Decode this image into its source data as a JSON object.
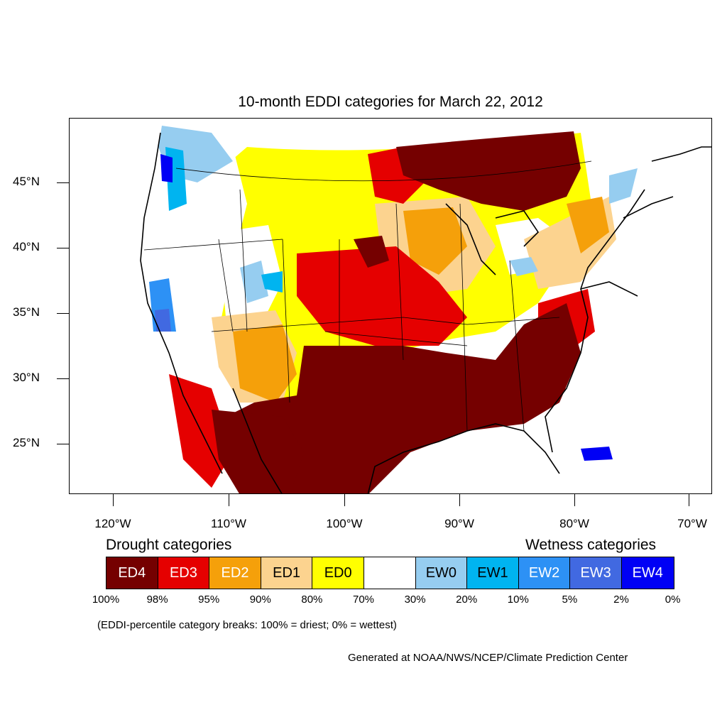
{
  "title": "10-month EDDI categories for March 22, 2012",
  "map": {
    "projection": "conic",
    "lat_labels": [
      "45°N",
      "40°N",
      "35°N",
      "30°N",
      "25°N"
    ],
    "lon_labels": [
      "120°W",
      "110°W",
      "100°W",
      "90°W",
      "80°W",
      "70°W"
    ],
    "regions": [
      {
        "name": "Northwest",
        "category": "ED0/neutral",
        "notes": "wetness patches along coast"
      },
      {
        "name": "Upper Midwest / Minnesota-Wisconsin",
        "category": "ED4"
      },
      {
        "name": "Central Plains",
        "category": "ED3"
      },
      {
        "name": "Southern Plains / Texas",
        "category": "ED4"
      },
      {
        "name": "Southeast / Georgia-Carolinas",
        "category": "ED4"
      },
      {
        "name": "Mexico north",
        "category": "ED4"
      },
      {
        "name": "Ohio Valley",
        "category": "ED0"
      },
      {
        "name": "California Sierra",
        "category": "EW2"
      }
    ]
  },
  "legend": {
    "drought_heading": "Drought categories",
    "wetness_heading": "Wetness categories",
    "cells": [
      {
        "label": "ED4",
        "color": "#750000",
        "text_color": "#ffffff"
      },
      {
        "label": "ED3",
        "color": "#e50000",
        "text_color": "#ffffff"
      },
      {
        "label": "ED2",
        "color": "#f5a00a",
        "text_color": "#ffffff"
      },
      {
        "label": "ED1",
        "color": "#fcd38f",
        "text_color": "#000000"
      },
      {
        "label": "ED0",
        "color": "#ffff00",
        "text_color": "#000000"
      },
      {
        "label": "",
        "color": "#ffffff",
        "text_color": "#000000"
      },
      {
        "label": "EW0",
        "color": "#96cdf0",
        "text_color": "#000000"
      },
      {
        "label": "EW1",
        "color": "#00b4f0",
        "text_color": "#000000"
      },
      {
        "label": "EW2",
        "color": "#2d91f5",
        "text_color": "#ffffff"
      },
      {
        "label": "EW3",
        "color": "#4169e1",
        "text_color": "#ffffff"
      },
      {
        "label": "EW4",
        "color": "#0000f5",
        "text_color": "#ffffff"
      }
    ],
    "breaks": [
      "100%",
      "98%",
      "95%",
      "90%",
      "80%",
      "70%",
      "30%",
      "20%",
      "10%",
      "5%",
      "2%",
      "0%"
    ]
  },
  "note": "(EDDI-percentile category breaks: 100% = driest; 0% = wettest)",
  "credit": "Generated at NOAA/NWS/NCEP/Climate Prediction Center"
}
